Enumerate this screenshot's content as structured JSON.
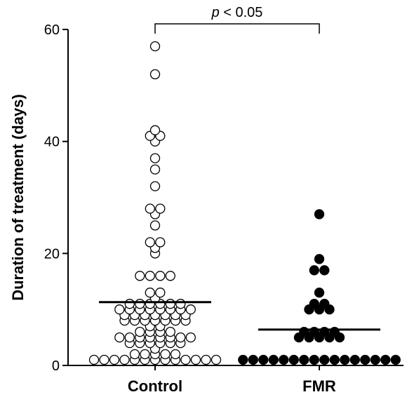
{
  "chart_data": {
    "type": "scatter",
    "title": "",
    "xlabel": "",
    "ylabel": "Duration of treatment (days)",
    "ylim": [
      0,
      60
    ],
    "yticks": [
      0,
      20,
      40,
      60
    ],
    "grid": false,
    "categories": [
      "Control",
      "FMR"
    ],
    "annotation": {
      "text_italic": "p",
      "text_rest": " < 0.05",
      "between": [
        "Control",
        "FMR"
      ],
      "y": 61
    },
    "series": [
      {
        "category": "Control",
        "marker": "open-circle",
        "mean": 11.3,
        "points": [
          57,
          52,
          42,
          41,
          41,
          40,
          37,
          35,
          32,
          28,
          28,
          27,
          25,
          22,
          22,
          21,
          20,
          16,
          16,
          16,
          16,
          13,
          13,
          12,
          11,
          11,
          11,
          11,
          11,
          11,
          10,
          10,
          10,
          10,
          10,
          10,
          10,
          10,
          9,
          9,
          9,
          9,
          9,
          9,
          9,
          8,
          8,
          8,
          8,
          8,
          8,
          8,
          7,
          7,
          6,
          6,
          6,
          6,
          5,
          5,
          5,
          5,
          5,
          5,
          5,
          5,
          4,
          4,
          4,
          4,
          4,
          4,
          3,
          2,
          2,
          2,
          2,
          2,
          1,
          1,
          1,
          1,
          1,
          1,
          1,
          1,
          1,
          1,
          1,
          1,
          1
        ]
      },
      {
        "category": "FMR",
        "marker": "filled-circle",
        "mean": 6.4,
        "points": [
          27,
          19,
          17,
          17,
          13,
          11,
          11,
          10,
          10,
          10,
          6,
          6,
          6,
          6,
          5,
          5,
          5,
          5,
          5,
          1,
          1,
          1,
          1,
          1,
          1,
          1,
          1,
          1,
          1,
          1,
          1,
          1,
          1,
          1,
          1
        ]
      }
    ]
  }
}
